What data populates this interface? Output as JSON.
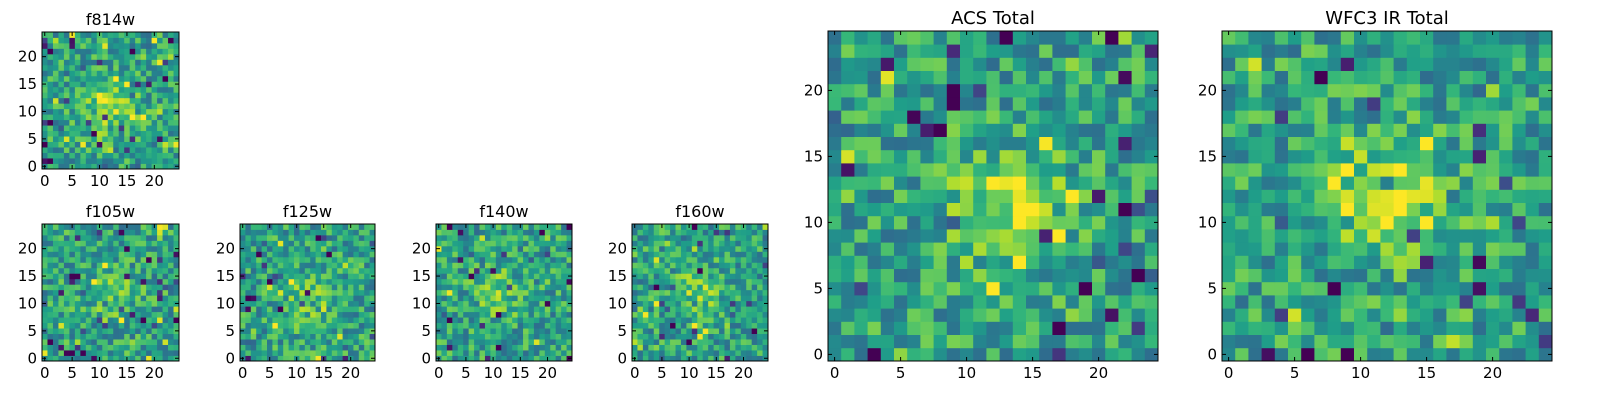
{
  "chart_data": [
    {
      "type": "heatmap",
      "title": "f814w",
      "grid_size": 25,
      "xlim": [
        0,
        25
      ],
      "ylim": [
        0,
        25
      ],
      "xticks": [
        0,
        5,
        10,
        15,
        20
      ],
      "yticks": [
        0,
        5,
        10,
        15,
        20
      ],
      "colormap": "viridis",
      "seed": 11,
      "blob": {
        "x": 12,
        "y": 11,
        "strength": 0.28
      },
      "values": "pixel noise map (25x25) — values generated from seed/blob"
    },
    {
      "type": "heatmap",
      "title": "f105w",
      "grid_size": 25,
      "xlim": [
        0,
        25
      ],
      "ylim": [
        0,
        25
      ],
      "xticks": [
        0,
        5,
        10,
        15,
        20
      ],
      "yticks": [
        0,
        5,
        10,
        15,
        20
      ],
      "colormap": "viridis",
      "seed": 23,
      "blob": {
        "x": 12,
        "y": 12,
        "strength": 0.18
      },
      "values": "pixel noise map (25x25)"
    },
    {
      "type": "heatmap",
      "title": "f125w",
      "grid_size": 25,
      "xlim": [
        0,
        25
      ],
      "ylim": [
        0,
        25
      ],
      "xticks": [
        0,
        5,
        10,
        15,
        20
      ],
      "yticks": [
        0,
        5,
        10,
        15,
        20
      ],
      "colormap": "viridis",
      "seed": 37,
      "blob": {
        "x": 12,
        "y": 11,
        "strength": 0.18
      },
      "values": "pixel noise map (25x25)"
    },
    {
      "type": "heatmap",
      "title": "f140w",
      "grid_size": 25,
      "xlim": [
        0,
        25
      ],
      "ylim": [
        0,
        25
      ],
      "xticks": [
        0,
        5,
        10,
        15,
        20
      ],
      "yticks": [
        0,
        5,
        10,
        15,
        20
      ],
      "colormap": "viridis",
      "seed": 41,
      "blob": {
        "x": 11,
        "y": 12,
        "strength": 0.18
      },
      "values": "pixel noise map (25x25)"
    },
    {
      "type": "heatmap",
      "title": "f160w",
      "grid_size": 25,
      "xlim": [
        0,
        25
      ],
      "ylim": [
        0,
        25
      ],
      "xticks": [
        0,
        5,
        10,
        15,
        20
      ],
      "yticks": [
        0,
        5,
        10,
        15,
        20
      ],
      "colormap": "viridis",
      "seed": 53,
      "blob": {
        "x": 12,
        "y": 12,
        "strength": 0.2
      },
      "values": "pixel noise map (25x25)"
    },
    {
      "type": "heatmap",
      "title": "ACS Total",
      "grid_size": 25,
      "xlim": [
        0,
        25
      ],
      "ylim": [
        0,
        25
      ],
      "xticks": [
        0,
        5,
        10,
        15,
        20
      ],
      "yticks": [
        0,
        5,
        10,
        15,
        20
      ],
      "colormap": "viridis",
      "seed": 67,
      "blob": {
        "x": 13,
        "y": 11,
        "strength": 0.3
      },
      "values": "pixel noise map (25x25)"
    },
    {
      "type": "heatmap",
      "title": "WFC3 IR Total",
      "grid_size": 25,
      "xlim": [
        0,
        25
      ],
      "ylim": [
        0,
        25
      ],
      "xticks": [
        0,
        5,
        10,
        15,
        20
      ],
      "yticks": [
        0,
        5,
        10,
        15,
        20
      ],
      "colormap": "viridis",
      "seed": 79,
      "blob": {
        "x": 12,
        "y": 12,
        "strength": 0.3
      },
      "values": "pixel noise map (25x25)"
    }
  ]
}
